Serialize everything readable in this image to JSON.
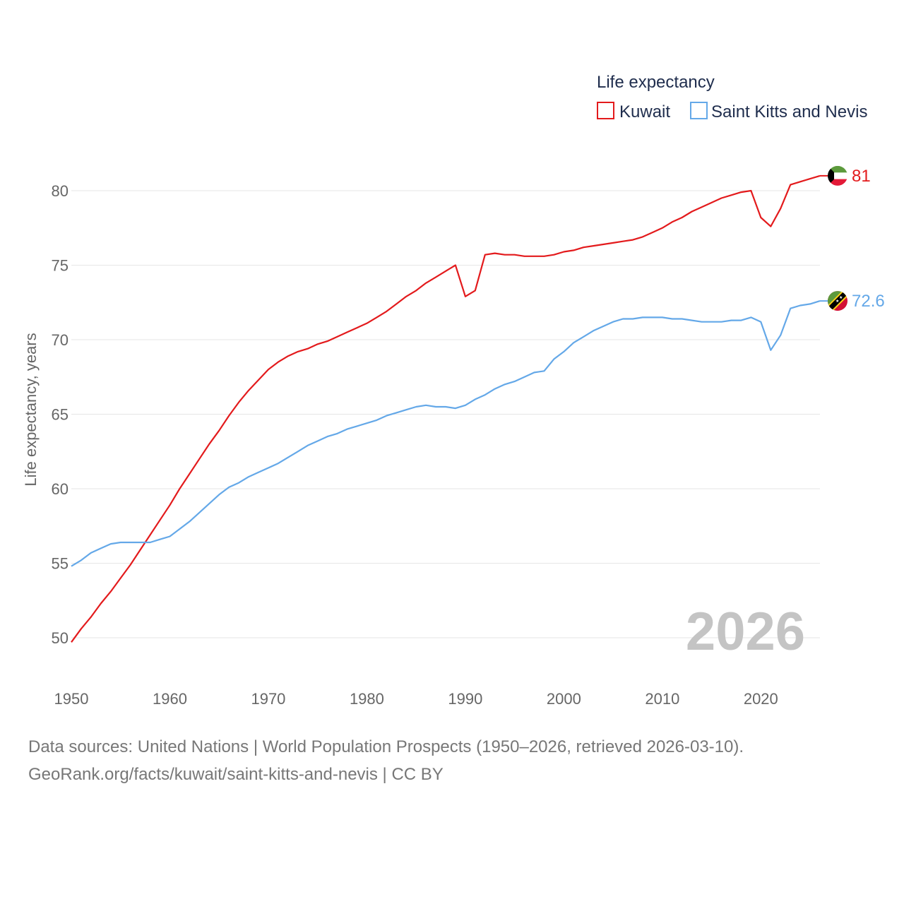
{
  "chart_data": {
    "type": "line",
    "legend_title": "Life expectancy",
    "ylabel": "Life expectancy, years",
    "xlabel": "",
    "xlim": [
      1950,
      2026
    ],
    "ylim": [
      47.8,
      82.5
    ],
    "yticks": [
      50,
      55,
      60,
      65,
      70,
      75,
      80
    ],
    "xticks": [
      1950,
      1960,
      1970,
      1980,
      1990,
      2000,
      2010,
      2020
    ],
    "year_display": "2026",
    "legend_position": "top-right",
    "x": [
      1950,
      1951,
      1952,
      1953,
      1954,
      1955,
      1956,
      1957,
      1958,
      1959,
      1960,
      1961,
      1962,
      1963,
      1964,
      1965,
      1966,
      1967,
      1968,
      1969,
      1970,
      1971,
      1972,
      1973,
      1974,
      1975,
      1976,
      1977,
      1978,
      1979,
      1980,
      1981,
      1982,
      1983,
      1984,
      1985,
      1986,
      1987,
      1988,
      1989,
      1990,
      1991,
      1992,
      1993,
      1994,
      1995,
      1996,
      1997,
      1998,
      1999,
      2000,
      2001,
      2002,
      2003,
      2004,
      2005,
      2006,
      2007,
      2008,
      2009,
      2010,
      2011,
      2012,
      2013,
      2014,
      2015,
      2016,
      2017,
      2018,
      2019,
      2020,
      2021,
      2022,
      2023,
      2024,
      2025,
      2026
    ],
    "series": [
      {
        "name": "Kuwait",
        "color": "#e31a1c",
        "end_label": "81",
        "flag": "kuwait-flag-icon",
        "values": [
          49.7,
          50.6,
          51.4,
          52.3,
          53.1,
          54.0,
          54.9,
          55.9,
          56.9,
          57.9,
          58.9,
          60.0,
          61.0,
          62.0,
          63.0,
          63.9,
          64.9,
          65.8,
          66.6,
          67.3,
          68.0,
          68.5,
          68.9,
          69.2,
          69.4,
          69.7,
          69.9,
          70.2,
          70.5,
          70.8,
          71.1,
          71.5,
          71.9,
          72.4,
          72.9,
          73.3,
          73.8,
          74.2,
          74.6,
          75.0,
          72.9,
          73.3,
          75.7,
          75.8,
          75.7,
          75.7,
          75.6,
          75.6,
          75.6,
          75.7,
          75.9,
          76.0,
          76.2,
          76.3,
          76.4,
          76.5,
          76.6,
          76.7,
          76.9,
          77.2,
          77.5,
          77.9,
          78.2,
          78.6,
          78.9,
          79.2,
          79.5,
          79.7,
          79.9,
          80.0,
          78.2,
          77.6,
          78.8,
          80.4,
          80.6,
          80.8,
          81.0
        ]
      },
      {
        "name": "Saint Kitts and Nevis",
        "color": "#64a8e8",
        "end_label": "72.6",
        "flag": "saint-kitts-and-nevis-flag-icon",
        "values": [
          54.8,
          55.2,
          55.7,
          56.0,
          56.3,
          56.4,
          56.4,
          56.4,
          56.4,
          56.6,
          56.8,
          57.3,
          57.8,
          58.4,
          59.0,
          59.6,
          60.1,
          60.4,
          60.8,
          61.1,
          61.4,
          61.7,
          62.1,
          62.5,
          62.9,
          63.2,
          63.5,
          63.7,
          64.0,
          64.2,
          64.4,
          64.6,
          64.9,
          65.1,
          65.3,
          65.5,
          65.6,
          65.5,
          65.5,
          65.4,
          65.6,
          66.0,
          66.3,
          66.7,
          67.0,
          67.2,
          67.5,
          67.8,
          67.9,
          68.7,
          69.2,
          69.8,
          70.2,
          70.6,
          70.9,
          71.2,
          71.4,
          71.4,
          71.5,
          71.5,
          71.5,
          71.4,
          71.4,
          71.3,
          71.2,
          71.2,
          71.2,
          71.3,
          71.3,
          71.5,
          71.2,
          69.3,
          70.3,
          72.1,
          72.3,
          72.4,
          72.6
        ]
      }
    ]
  },
  "footer": {
    "line1": "Data sources: United Nations | World Population Prospects (1950–2026, retrieved 2026-03-10).",
    "line2": "GeoRank.org/facts/kuwait/saint-kitts-and-nevis | CC BY"
  }
}
